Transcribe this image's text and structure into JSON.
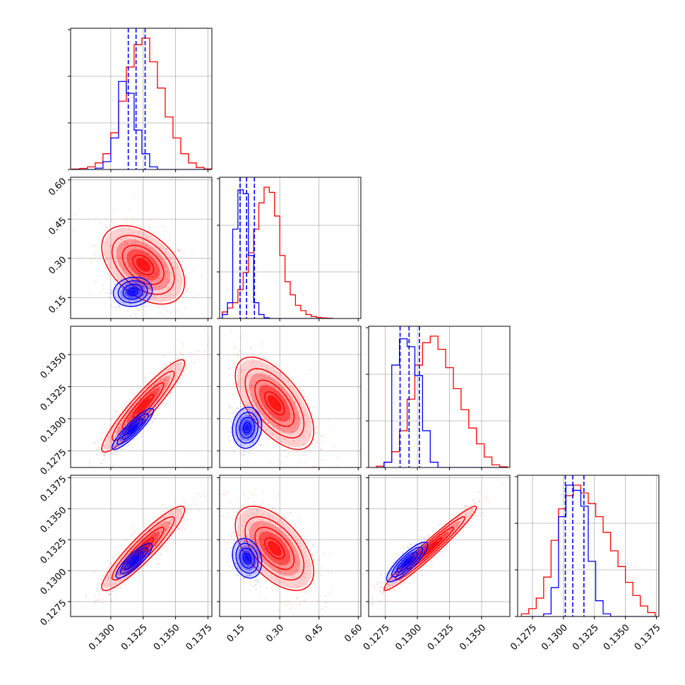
{
  "chart_data": {
    "type": "corner",
    "grid": true,
    "colors": {
      "blue": "#0000ff",
      "red": "#ff0000",
      "grid": "#b0b0b0"
    },
    "tick_labels": {
      "v0": [
        "0.1300",
        "0.1325",
        "0.1350",
        "0.1375"
      ],
      "v1": [
        "0.15",
        "0.30",
        "0.45",
        "0.60"
      ],
      "v2": [
        "0.1275",
        "0.1300",
        "0.1325",
        "0.1350"
      ],
      "v3": [
        "0.1275",
        "0.1300",
        "0.1325",
        "0.1350",
        "0.1375"
      ]
    },
    "axes": {
      "v0": {
        "range": [
          0.1269,
          0.1378
        ],
        "ticks": [
          0.13,
          0.1325,
          0.135,
          0.1375
        ]
      },
      "v1": {
        "range": [
          0.07,
          0.61
        ],
        "ticks": [
          0.15,
          0.3,
          0.45,
          0.6
        ]
      },
      "v2": {
        "range": [
          0.1262,
          0.1372
        ],
        "ticks": [
          0.1275,
          0.13,
          0.1325,
          0.135
        ]
      },
      "v3": {
        "range": [
          0.1263,
          0.1377
        ],
        "ticks": [
          0.1275,
          0.13,
          0.1325,
          0.135,
          0.1375
        ]
      }
    },
    "blue_quantiles": {
      "v0": [
        0.13135,
        0.13195,
        0.13265
      ],
      "v1": [
        0.148,
        0.173,
        0.203
      ],
      "v2": [
        0.12865,
        0.12935,
        0.13015
      ],
      "v3": [
        0.13015,
        0.13075,
        0.13165
      ]
    },
    "histograms": {
      "v0": {
        "bins": [
          0.127,
          0.1276,
          0.1282,
          0.1288,
          0.1294,
          0.13,
          0.1306,
          0.1312,
          0.1318,
          0.1324,
          0.133,
          0.1336,
          0.1342,
          0.1348,
          0.1354,
          0.136,
          0.1366,
          0.1372,
          0.1378
        ],
        "red": [
          0.003,
          0.008,
          0.02,
          0.05,
          0.12,
          0.28,
          0.52,
          0.78,
          0.95,
          1.0,
          0.82,
          0.62,
          0.4,
          0.24,
          0.12,
          0.05,
          0.015,
          0.004
        ],
        "blue": [
          0,
          0,
          0,
          0.01,
          0.06,
          0.24,
          0.67,
          0.58,
          0.3,
          0.12,
          0.02,
          0,
          0,
          0,
          0,
          0,
          0,
          0
        ]
      },
      "v1": {
        "bins": [
          0.08,
          0.1,
          0.12,
          0.14,
          0.16,
          0.18,
          0.2,
          0.22,
          0.24,
          0.26,
          0.28,
          0.3,
          0.32,
          0.34,
          0.36,
          0.38,
          0.4,
          0.42,
          0.44,
          0.46,
          0.48,
          0.5
        ],
        "red": [
          0.05,
          0.08,
          0.12,
          0.22,
          0.35,
          0.5,
          0.68,
          0.88,
          1.0,
          0.96,
          0.78,
          0.48,
          0.28,
          0.18,
          0.1,
          0.06,
          0.03,
          0.015,
          0.008,
          0.004,
          0.002
        ],
        "blue": [
          0.03,
          0.12,
          0.68,
          0.98,
          0.95,
          0.48,
          0.12,
          0.03,
          0.005,
          0,
          0,
          0,
          0,
          0,
          0,
          0,
          0,
          0,
          0,
          0,
          0
        ]
      },
      "v2": {
        "bins": [
          0.1268,
          0.1274,
          0.128,
          0.1286,
          0.1292,
          0.1298,
          0.1304,
          0.131,
          0.1316,
          0.1322,
          0.1328,
          0.1334,
          0.134,
          0.1346,
          0.1352,
          0.1358,
          0.1364,
          0.137
        ],
        "red": [
          0.01,
          0.04,
          0.12,
          0.28,
          0.52,
          0.78,
          0.95,
          1.0,
          0.9,
          0.76,
          0.6,
          0.44,
          0.3,
          0.18,
          0.08,
          0.02,
          0.005
        ],
        "blue": [
          0,
          0.04,
          0.78,
          0.98,
          0.92,
          0.7,
          0.28,
          0.04,
          0,
          0,
          0,
          0,
          0,
          0,
          0,
          0,
          0
        ]
      },
      "v3": {
        "bins": [
          0.1266,
          0.1272,
          0.1278,
          0.1284,
          0.129,
          0.1296,
          0.1302,
          0.1308,
          0.1314,
          0.132,
          0.1326,
          0.1332,
          0.1338,
          0.1344,
          0.135,
          0.1356,
          0.1362,
          0.1368,
          0.1374
        ],
        "red": [
          0.02,
          0.06,
          0.14,
          0.3,
          0.58,
          0.82,
          0.92,
          1.0,
          0.94,
          0.86,
          0.76,
          0.64,
          0.5,
          0.38,
          0.26,
          0.16,
          0.08,
          0.03
        ],
        "blue": [
          0,
          0,
          0,
          0.02,
          0.22,
          0.76,
          1.0,
          0.96,
          0.84,
          0.42,
          0.12,
          0.02,
          0,
          0,
          0,
          0,
          0,
          0
        ]
      }
    },
    "joints": {
      "v1_v0": {
        "red": {
          "center": [
            0.1325,
            0.275
          ],
          "sd": [
            0.0016,
            0.075
          ],
          "rho": -0.45
        },
        "blue": {
          "center": [
            0.1317,
            0.172
          ],
          "sd": [
            0.00075,
            0.028
          ],
          "rho": 0.1
        }
      },
      "v2_v0": {
        "red": {
          "center": [
            0.1325,
            0.131
          ],
          "sd": [
            0.0016,
            0.0018
          ],
          "rho": 0.93
        },
        "blue": {
          "center": [
            0.1317,
            0.1292
          ],
          "sd": [
            0.0008,
            0.0008
          ],
          "rho": 0.9
        }
      },
      "v2_v1": {
        "red": {
          "center": [
            0.28,
            0.1312
          ],
          "sd": [
            0.075,
            0.0018
          ],
          "rho": -0.6
        },
        "blue": {
          "center": [
            0.175,
            0.1293
          ],
          "sd": [
            0.028,
            0.0008
          ],
          "rho": 0.1
        }
      },
      "v3_v0": {
        "red": {
          "center": [
            0.1325,
            0.1318
          ],
          "sd": [
            0.0016,
            0.0017
          ],
          "rho": 0.92
        },
        "blue": {
          "center": [
            0.1318,
            0.1308
          ],
          "sd": [
            0.0007,
            0.0007
          ],
          "rho": 0.85
        }
      },
      "v3_v1": {
        "red": {
          "center": [
            0.28,
            0.1318
          ],
          "sd": [
            0.075,
            0.0017
          ],
          "rho": -0.55
        },
        "blue": {
          "center": [
            0.175,
            0.131
          ],
          "sd": [
            0.028,
            0.0008
          ],
          "rho": -0.2
        }
      },
      "v3_v2": {
        "red": {
          "center": [
            0.131,
            0.1318
          ],
          "sd": [
            0.0018,
            0.0017
          ],
          "rho": 0.97
        },
        "blue": {
          "center": [
            0.1292,
            0.1307
          ],
          "sd": [
            0.0008,
            0.0008
          ],
          "rho": 0.85
        }
      }
    }
  }
}
